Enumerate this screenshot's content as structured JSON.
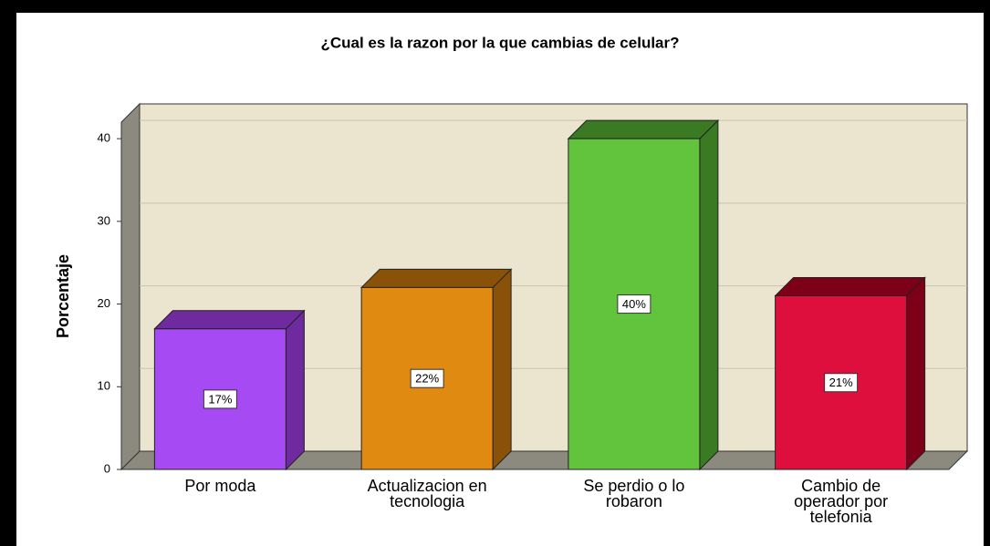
{
  "chart_data": {
    "type": "bar3d",
    "title": "¿Cual es la razon por la que cambias de celular?",
    "y_label": "Porcentaje",
    "categories": [
      "Por moda",
      "Actualizacion en tecnologia",
      "Se perdio o lo robaron",
      "Cambio de operador por telefonia"
    ],
    "values": [
      17,
      22,
      40,
      21
    ],
    "value_labels": [
      "17%",
      "22%",
      "40%",
      "21%"
    ],
    "colors": [
      "#a64bf4",
      "#e08a12",
      "#62c43c",
      "#de0f3c"
    ],
    "side_colors": [
      "#6e2a9e",
      "#8a5208",
      "#3a7a22",
      "#7e0018"
    ],
    "ylim": [
      0,
      42
    ],
    "yticks": [
      0,
      10,
      20,
      30,
      40
    ],
    "grid": true
  }
}
